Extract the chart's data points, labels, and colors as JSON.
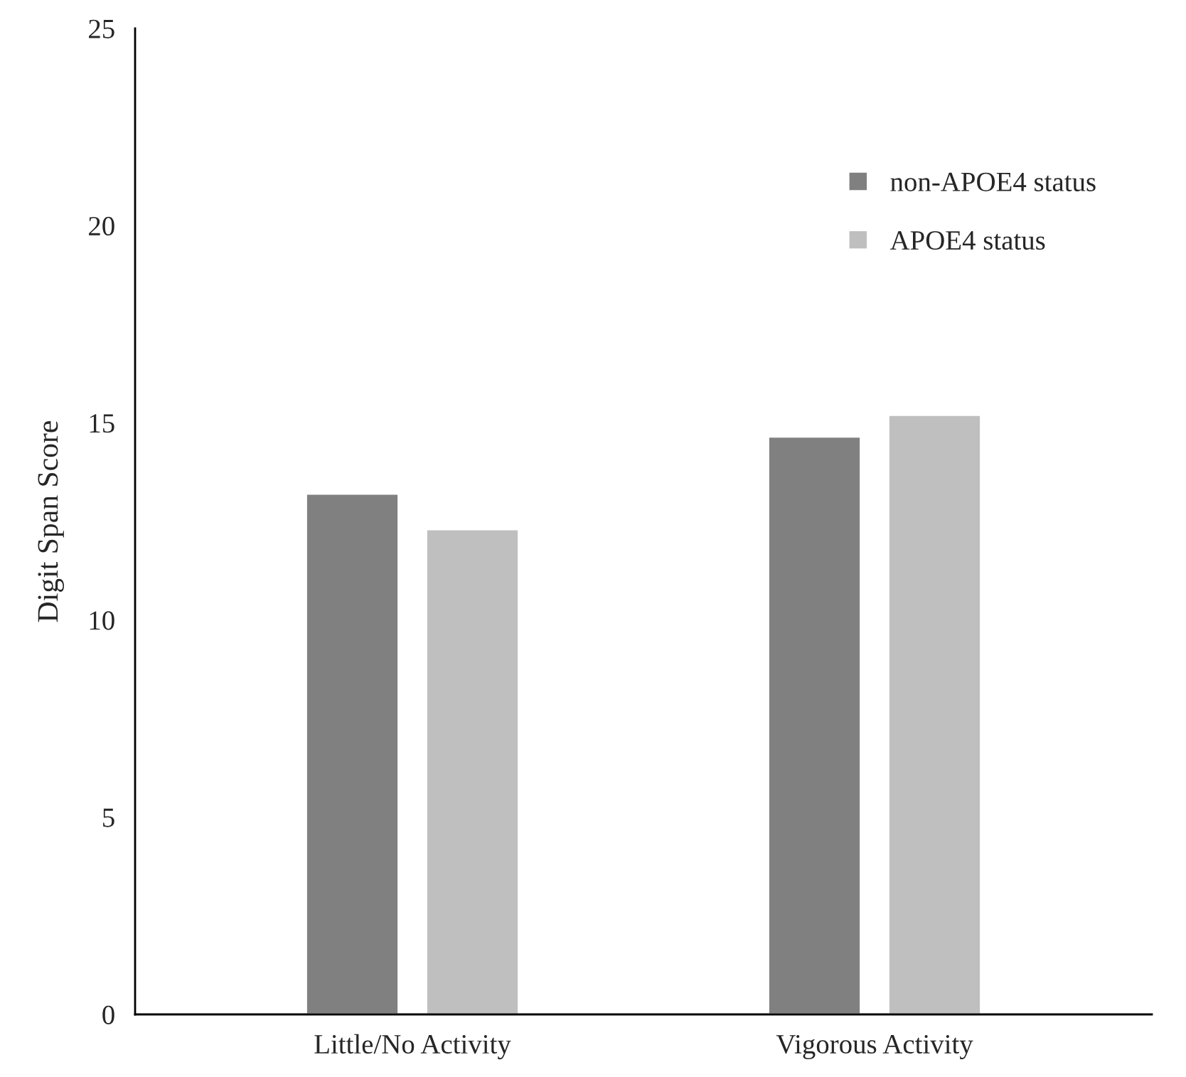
{
  "chart_data": {
    "type": "bar",
    "ylabel": "Digit Span Score",
    "categories": [
      "Little/No Activity",
      "Vigorous Activity"
    ],
    "series": [
      {
        "name": "non-APOE4 status",
        "color": "#808080",
        "values": [
          13.2,
          14.65
        ]
      },
      {
        "name": "APOE4 status",
        "color": "#bfbfbf",
        "values": [
          12.3,
          15.2
        ]
      }
    ],
    "ylim": [
      0,
      25
    ],
    "yticks": [
      0,
      5,
      10,
      15,
      20,
      25
    ],
    "grid": false,
    "legend": "top right"
  }
}
